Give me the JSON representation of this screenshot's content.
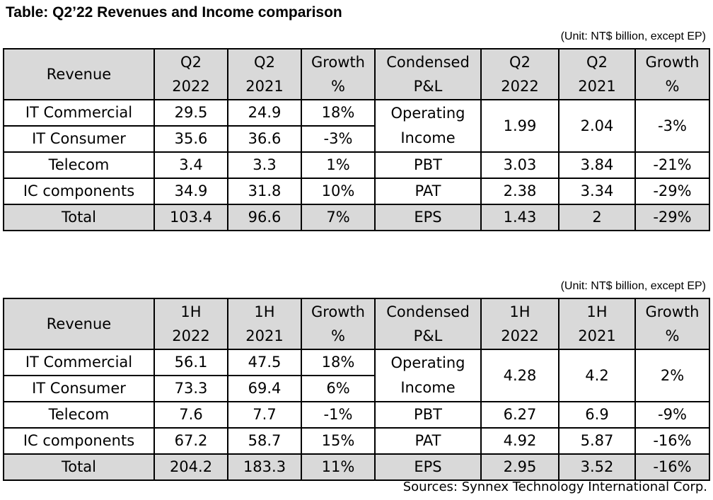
{
  "title": "Table: Q2’22 Revenues and Income comparison",
  "unit_label": "(Unit: NT$ billion, except EP)",
  "source": "Sources: Synnex Technology International Corp.",
  "tables": [
    {
      "headers": {
        "revenue": "Revenue",
        "cur_line1": "Q2",
        "cur_line2": "2022",
        "prev_line1": "Q2",
        "prev_line2": "2021",
        "growth_line1": "Growth",
        "growth_line2": "%",
        "pl_line1": "Condensed",
        "pl_line2": "P&L",
        "pl_cur_line1": "Q2",
        "pl_cur_line2": "2022",
        "pl_prev_line1": "Q2",
        "pl_prev_line2": "2021",
        "pl_growth_line1": "Growth",
        "pl_growth_line2": "%"
      },
      "revenue_rows": [
        {
          "label": "IT Commercial",
          "cur": "29.5",
          "prev": "24.9",
          "growth": "18%"
        },
        {
          "label": "IT Consumer",
          "cur": "35.6",
          "prev": "36.6",
          "growth": "-3%"
        },
        {
          "label": "Telecom",
          "cur": "3.4",
          "prev": "3.3",
          "growth": "1%"
        },
        {
          "label": "IC components",
          "cur": "34.9",
          "prev": "31.8",
          "growth": "10%"
        }
      ],
      "revenue_total": {
        "label": "Total",
        "cur": "103.4",
        "prev": "96.6",
        "growth": "7%"
      },
      "pl_rows": [
        {
          "label_line1": "Operating",
          "label_line2": "Income",
          "cur": "1.99",
          "prev": "2.04",
          "growth": "-3%"
        },
        {
          "label": "PBT",
          "cur": "3.03",
          "prev": "3.84",
          "growth": "-21%"
        },
        {
          "label": "PAT",
          "cur": "2.38",
          "prev": "3.34",
          "growth": "-29%"
        },
        {
          "label": "EPS",
          "cur": "1.43",
          "prev": "2",
          "growth": "-29%"
        }
      ]
    },
    {
      "headers": {
        "revenue": "Revenue",
        "cur_line1": "1H",
        "cur_line2": "2022",
        "prev_line1": "1H",
        "prev_line2": "2021",
        "growth_line1": "Growth",
        "growth_line2": "%",
        "pl_line1": "Condensed",
        "pl_line2": "P&L",
        "pl_cur_line1": "1H",
        "pl_cur_line2": "2022",
        "pl_prev_line1": "1H",
        "pl_prev_line2": "2021",
        "pl_growth_line1": "Growth",
        "pl_growth_line2": "%"
      },
      "revenue_rows": [
        {
          "label": "IT Commercial",
          "cur": "56.1",
          "prev": "47.5",
          "growth": "18%"
        },
        {
          "label": "IT Consumer",
          "cur": "73.3",
          "prev": "69.4",
          "growth": "6%"
        },
        {
          "label": "Telecom",
          "cur": "7.6",
          "prev": "7.7",
          "growth": "-1%"
        },
        {
          "label": "IC components",
          "cur": "67.2",
          "prev": "58.7",
          "growth": "15%"
        }
      ],
      "revenue_total": {
        "label": "Total",
        "cur": "204.2",
        "prev": "183.3",
        "growth": "11%"
      },
      "pl_rows": [
        {
          "label_line1": "Operating",
          "label_line2": "Income",
          "cur": "4.28",
          "prev": "4.2",
          "growth": "2%"
        },
        {
          "label": "PBT",
          "cur": "6.27",
          "prev": "6.9",
          "growth": "-9%"
        },
        {
          "label": "PAT",
          "cur": "4.92",
          "prev": "5.87",
          "growth": "-16%"
        },
        {
          "label": "EPS",
          "cur": "2.95",
          "prev": "3.52",
          "growth": "-16%"
        }
      ]
    }
  ]
}
